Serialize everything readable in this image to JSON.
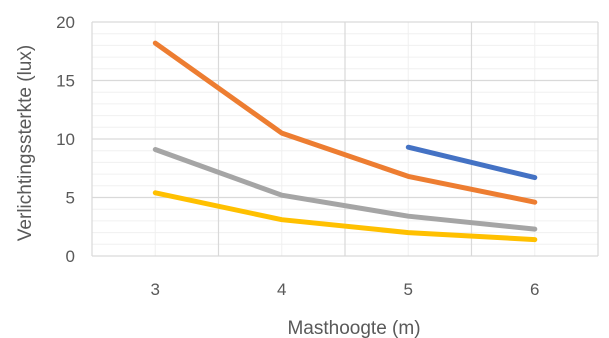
{
  "chart_data": {
    "type": "line",
    "title": "",
    "xlabel": "Masthoogte (m)",
    "ylabel": "Verlichtingssterkte (lux)",
    "x": [
      3,
      4,
      5,
      6
    ],
    "x_tick_labels": [
      "3",
      "4",
      "5",
      "6"
    ],
    "y_tick_labels": [
      "0",
      "5",
      "10",
      "15",
      "20"
    ],
    "ylim": [
      0,
      20
    ],
    "grid": true,
    "legend": "none",
    "series": [
      {
        "color": "#4472C4",
        "values": [
          null,
          null,
          9.3,
          6.7
        ]
      },
      {
        "color": "#ED7D31",
        "values": [
          18.2,
          10.5,
          6.8,
          4.6
        ]
      },
      {
        "color": "#A5A5A5",
        "values": [
          9.1,
          5.2,
          3.4,
          2.3
        ]
      },
      {
        "color": "#FFC000",
        "values": [
          5.4,
          3.1,
          2.0,
          1.4
        ]
      }
    ]
  }
}
